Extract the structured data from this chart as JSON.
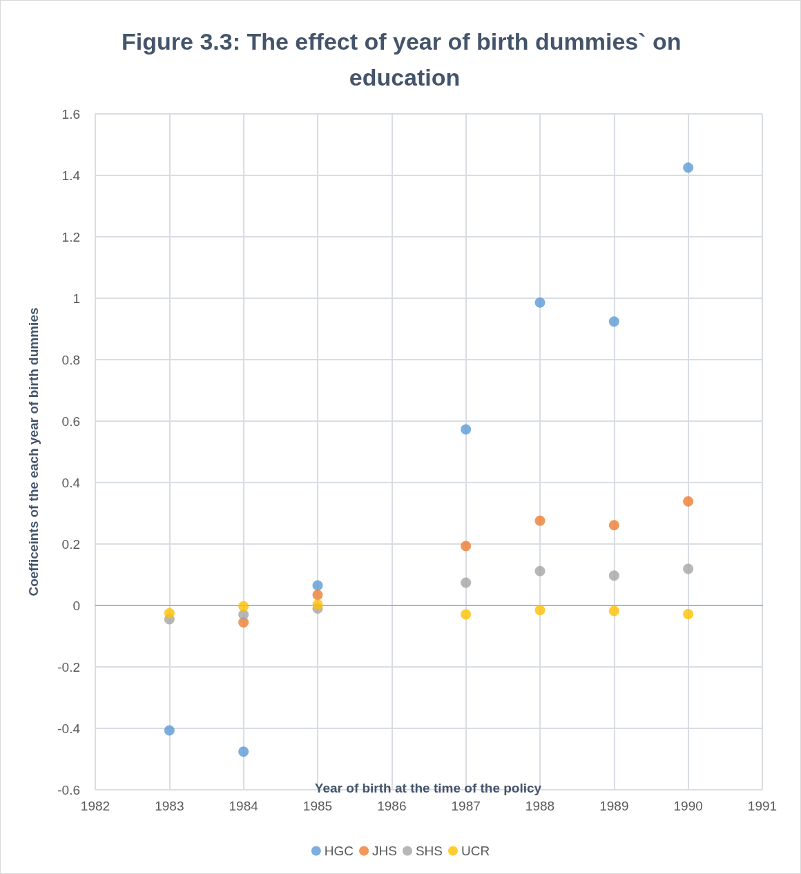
{
  "chart_data": {
    "type": "scatter",
    "title": "Figure 3.3: The effect of year of birth dummies` on education",
    "xlabel": "Year of birth at the time of the policy",
    "ylabel": "Coefficeints of the each year of birth dummies",
    "x": [
      1983,
      1984,
      1985,
      1987,
      1988,
      1989,
      1990
    ],
    "series": [
      {
        "name": "HGC",
        "color": "#5b9bd5",
        "values": [
          -0.407,
          -0.476,
          0.065,
          0.573,
          0.986,
          0.924,
          1.425
        ]
      },
      {
        "name": "JHS",
        "color": "#ed7d31",
        "values": [
          null,
          -0.055,
          0.034,
          0.193,
          0.276,
          0.261,
          0.339
        ]
      },
      {
        "name": "SHS",
        "color": "#a5a5a5",
        "values": [
          -0.045,
          -0.03,
          -0.01,
          0.074,
          0.112,
          0.097,
          0.119
        ]
      },
      {
        "name": "UCR",
        "color": "#ffc000",
        "values": [
          -0.025,
          -0.003,
          0.003,
          -0.029,
          -0.015,
          -0.018,
          -0.028
        ]
      }
    ],
    "xlim": [
      1982,
      1991
    ],
    "xticks": [
      1982,
      1983,
      1984,
      1985,
      1986,
      1987,
      1988,
      1989,
      1990,
      1991
    ],
    "ylim": [
      -0.6,
      1.6
    ],
    "yticks": [
      {
        "value": -0.6,
        "label": "-0.6"
      },
      {
        "value": -0.4,
        "label": "-0.4"
      },
      {
        "value": -0.2,
        "label": "-0.2"
      },
      0,
      {
        "value": 0.2,
        "label": "0.2"
      },
      {
        "value": 0.4,
        "label": "0.4"
      },
      {
        "value": 0.6,
        "label": "0.6"
      },
      {
        "value": 0.8,
        "label": "0.8"
      },
      1,
      {
        "value": 1.2,
        "label": "1.2"
      },
      {
        "value": 1.4,
        "label": "1.4"
      },
      {
        "value": 1.6,
        "label": "1.6"
      }
    ],
    "grid": true,
    "legend": "bottom",
    "marker": "circle"
  }
}
